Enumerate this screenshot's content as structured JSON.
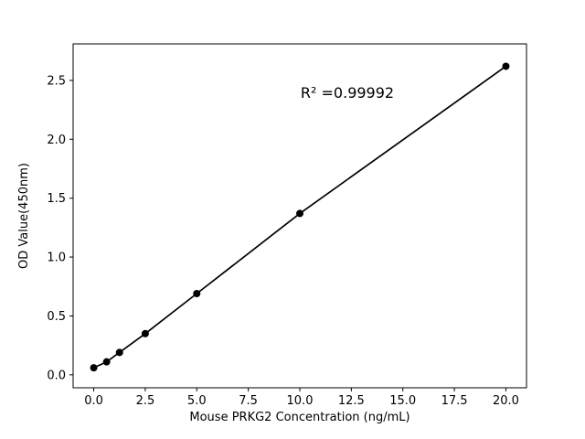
{
  "figure": {
    "background": "#ffffff",
    "frame_color": "#000000"
  },
  "chart_data": {
    "type": "line",
    "title": "",
    "xlabel": "Mouse PRKG2 Concentration (ng/mL)",
    "ylabel": "OD Value(450nm)",
    "series": [
      {
        "name": "standard-curve",
        "x": [
          0,
          0.625,
          1.25,
          2.5,
          5,
          10,
          20
        ],
        "y": [
          0.06,
          0.11,
          0.19,
          0.35,
          0.69,
          1.37,
          2.62
        ]
      }
    ],
    "xlim": [
      -1.0,
      21.0
    ],
    "ylim": [
      -0.11,
      2.81
    ],
    "xticks": {
      "values": [
        0,
        2.5,
        5,
        7.5,
        10,
        12.5,
        15,
        17.5,
        20
      ],
      "labels": [
        "0.0",
        "2.5",
        "5.0",
        "7.5",
        "10.0",
        "12.5",
        "15.0",
        "17.5",
        "20.0"
      ]
    },
    "yticks": {
      "values": [
        0,
        0.5,
        1,
        1.5,
        2,
        2.5
      ],
      "labels": [
        "0.0",
        "0.5",
        "1.0",
        "1.5",
        "2.0",
        "2.5"
      ]
    },
    "annotation": {
      "text": "R² =0.99992"
    },
    "line_color": "#000000",
    "marker_color": "#000000",
    "marker": "circle",
    "marker_radius": 4,
    "grid": false,
    "legend": null
  }
}
